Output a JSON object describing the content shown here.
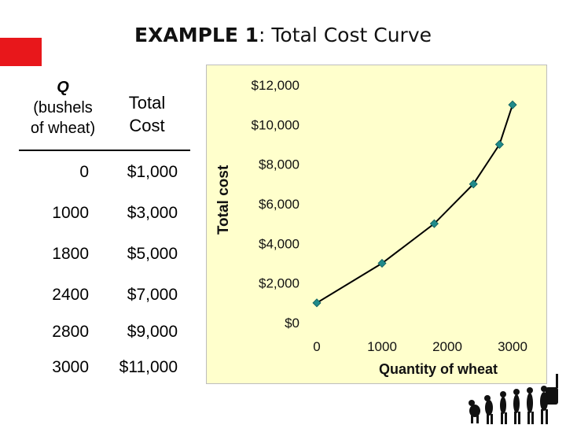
{
  "title": {
    "prefix": "EXAMPLE 1",
    "rest": ":  Total Cost Curve"
  },
  "table": {
    "header_q": "Q",
    "header_q_line2": "(bushels",
    "header_q_line3": "of wheat)",
    "header_tc_line1": "Total",
    "header_tc_line2": "Cost",
    "rows": [
      {
        "q": "0",
        "cost": "$1,000"
      },
      {
        "q": "1000",
        "cost": "$3,000"
      },
      {
        "q": "1800",
        "cost": "$5,000"
      },
      {
        "q": "2400",
        "cost": "$7,000"
      },
      {
        "q": "2800",
        "cost": "$9,000"
      },
      {
        "q": "3000",
        "cost": "$11,000"
      }
    ]
  },
  "chart_data": {
    "type": "line",
    "x": [
      0,
      1000,
      1800,
      2400,
      2800,
      3000
    ],
    "series": [
      {
        "values": [
          1000,
          3000,
          5000,
          7000,
          9000,
          11000
        ]
      }
    ],
    "xlabel": "Quantity of wheat",
    "ylabel": "Total cost",
    "xlim": [
      0,
      3000
    ],
    "ylim": [
      0,
      12000
    ],
    "x_ticks": [
      0,
      1000,
      2000,
      3000
    ],
    "x_tick_labels": [
      "0",
      "1000",
      "2000",
      "3000"
    ],
    "y_ticks": [
      0,
      2000,
      4000,
      6000,
      8000,
      10000,
      12000
    ],
    "y_tick_labels": [
      "$0",
      "$2,000",
      "$4,000",
      "$6,000",
      "$8,000",
      "$10,000",
      "$12,000"
    ],
    "grid": false,
    "legend": "none",
    "line_color": "#000000",
    "marker_color": "#1f8a8a",
    "background_color": "#ffffcc"
  }
}
